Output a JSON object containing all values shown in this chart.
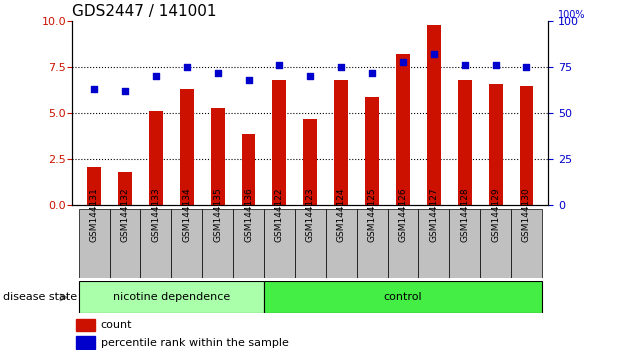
{
  "title": "GDS2447 / 141001",
  "samples": [
    "GSM144131",
    "GSM144132",
    "GSM144133",
    "GSM144134",
    "GSM144135",
    "GSM144136",
    "GSM144122",
    "GSM144123",
    "GSM144124",
    "GSM144125",
    "GSM144126",
    "GSM144127",
    "GSM144128",
    "GSM144129",
    "GSM144130"
  ],
  "counts": [
    2.1,
    1.8,
    5.1,
    6.3,
    5.3,
    3.9,
    6.8,
    4.7,
    6.8,
    5.9,
    8.2,
    9.8,
    6.8,
    6.6,
    6.5
  ],
  "percentiles": [
    63,
    62,
    70,
    75,
    72,
    68,
    76,
    70,
    75,
    72,
    78,
    82,
    76,
    76,
    75
  ],
  "bar_color": "#cc1100",
  "dot_color": "#0000cc",
  "ylim_left": [
    0,
    10
  ],
  "ylim_right": [
    0,
    100
  ],
  "yticks_left": [
    0,
    2.5,
    5.0,
    7.5,
    10
  ],
  "yticks_right": [
    0,
    25,
    50,
    75,
    100
  ],
  "groups": [
    {
      "label": "nicotine dependence",
      "start": 0,
      "end": 6,
      "color": "#aaffaa"
    },
    {
      "label": "control",
      "start": 6,
      "end": 15,
      "color": "#44ee44"
    }
  ],
  "group_label": "disease state",
  "legend_count_label": "count",
  "legend_percentile_label": "percentile rank within the sample",
  "dotted_lines": [
    2.5,
    5.0,
    7.5
  ],
  "tick_label_bg": "#c0c0c0",
  "title_fontsize": 11,
  "bar_width": 0.45
}
